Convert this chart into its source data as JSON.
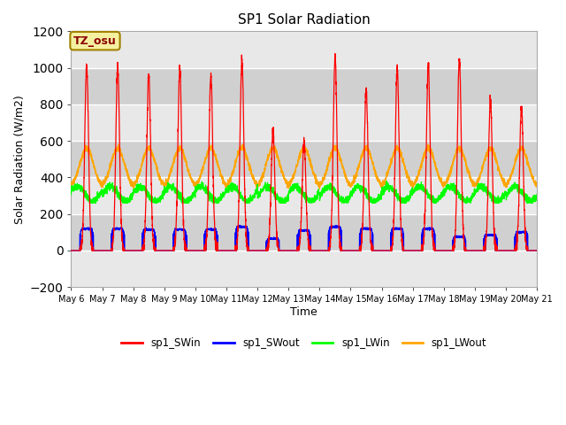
{
  "title": "SP1 Solar Radiation",
  "xlabel": "Time",
  "ylabel": "Solar Radiation (W/m2)",
  "ylim": [
    -200,
    1200
  ],
  "tz_label": "TZ_osu",
  "legend": [
    "sp1_SWin",
    "sp1_SWout",
    "sp1_LWin",
    "sp1_LWout"
  ],
  "colors": [
    "red",
    "blue",
    "lime",
    "orange"
  ],
  "sw_in_peaks": [
    1025,
    1005,
    960,
    1000,
    955,
    1045,
    660,
    595,
    1060,
    875,
    1000,
    1010,
    1045,
    830,
    780
  ],
  "sw_out_peaks": [
    120,
    120,
    115,
    115,
    115,
    130,
    65,
    110,
    130,
    120,
    120,
    120,
    75,
    85,
    100
  ],
  "lw_in_base": 310,
  "lw_out_base": 340,
  "lw_out_peak": 560,
  "n_days": 15,
  "pts_per_day": 288
}
